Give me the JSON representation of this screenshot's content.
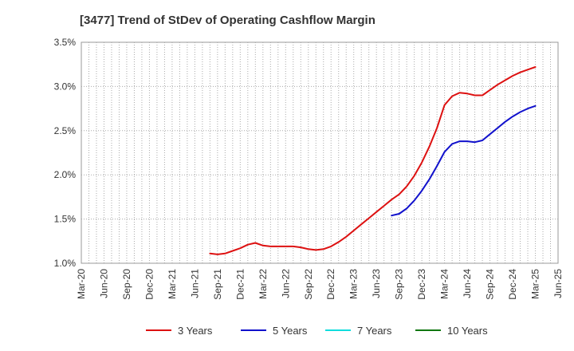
{
  "chart_data": {
    "type": "line",
    "title": "[3477]  Trend of StDev of Operating Cashflow Margin",
    "xlabel": "",
    "ylabel": "",
    "ylim": [
      1.0,
      3.5
    ],
    "yticks": [
      "1.0%",
      "1.5%",
      "2.0%",
      "2.5%",
      "3.0%",
      "3.5%"
    ],
    "x_ticks": [
      "Mar-20",
      "Jun-20",
      "Sep-20",
      "Dec-20",
      "Mar-21",
      "Jun-21",
      "Sep-21",
      "Dec-21",
      "Mar-22",
      "Jun-22",
      "Sep-22",
      "Dec-22",
      "Mar-23",
      "Jun-23",
      "Sep-23",
      "Dec-23",
      "Mar-24",
      "Jun-24",
      "Sep-24",
      "Dec-24",
      "Mar-25",
      "Jun-25"
    ],
    "grid": true,
    "legend_position": "bottom",
    "series": [
      {
        "name": "3 Years",
        "color": "#dd1111",
        "points": [
          [
            "Aug-21",
            1.11
          ],
          [
            "Sep-21",
            1.1
          ],
          [
            "Oct-21",
            1.11
          ],
          [
            "Nov-21",
            1.14
          ],
          [
            "Dec-21",
            1.17
          ],
          [
            "Jan-22",
            1.21
          ],
          [
            "Feb-22",
            1.23
          ],
          [
            "Mar-22",
            1.2
          ],
          [
            "Apr-22",
            1.19
          ],
          [
            "May-22",
            1.19
          ],
          [
            "Jun-22",
            1.19
          ],
          [
            "Jul-22",
            1.19
          ],
          [
            "Aug-22",
            1.18
          ],
          [
            "Sep-22",
            1.16
          ],
          [
            "Oct-22",
            1.15
          ],
          [
            "Nov-22",
            1.16
          ],
          [
            "Dec-22",
            1.19
          ],
          [
            "Jan-23",
            1.24
          ],
          [
            "Feb-23",
            1.3
          ],
          [
            "Mar-23",
            1.37
          ],
          [
            "Apr-23",
            1.44
          ],
          [
            "May-23",
            1.51
          ],
          [
            "Jun-23",
            1.58
          ],
          [
            "Jul-23",
            1.65
          ],
          [
            "Aug-23",
            1.72
          ],
          [
            "Sep-23",
            1.78
          ],
          [
            "Oct-23",
            1.87
          ],
          [
            "Nov-23",
            1.99
          ],
          [
            "Dec-23",
            2.14
          ],
          [
            "Jan-24",
            2.32
          ],
          [
            "Feb-24",
            2.53
          ],
          [
            "Mar-24",
            2.79
          ],
          [
            "Apr-24",
            2.89
          ],
          [
            "May-24",
            2.93
          ],
          [
            "Jun-24",
            2.92
          ],
          [
            "Jul-24",
            2.9
          ],
          [
            "Aug-24",
            2.9
          ],
          [
            "Sep-24",
            2.96
          ],
          [
            "Oct-24",
            3.02
          ],
          [
            "Nov-24",
            3.07
          ],
          [
            "Dec-24",
            3.12
          ],
          [
            "Jan-25",
            3.16
          ],
          [
            "Feb-25",
            3.19
          ],
          [
            "Mar-25",
            3.22
          ]
        ]
      },
      {
        "name": "5 Years",
        "color": "#1111cc",
        "points": [
          [
            "Aug-23",
            1.54
          ],
          [
            "Sep-23",
            1.56
          ],
          [
            "Oct-23",
            1.62
          ],
          [
            "Nov-23",
            1.71
          ],
          [
            "Dec-23",
            1.82
          ],
          [
            "Jan-24",
            1.95
          ],
          [
            "Feb-24",
            2.1
          ],
          [
            "Mar-24",
            2.26
          ],
          [
            "Apr-24",
            2.35
          ],
          [
            "May-24",
            2.38
          ],
          [
            "Jun-24",
            2.38
          ],
          [
            "Jul-24",
            2.37
          ],
          [
            "Aug-24",
            2.39
          ],
          [
            "Sep-24",
            2.46
          ],
          [
            "Oct-24",
            2.53
          ],
          [
            "Nov-24",
            2.6
          ],
          [
            "Dec-24",
            2.66
          ],
          [
            "Jan-25",
            2.71
          ],
          [
            "Feb-25",
            2.75
          ],
          [
            "Mar-25",
            2.78
          ]
        ]
      },
      {
        "name": "7 Years",
        "color": "#11dddd",
        "points": []
      },
      {
        "name": "10 Years",
        "color": "#117711",
        "points": []
      }
    ]
  }
}
